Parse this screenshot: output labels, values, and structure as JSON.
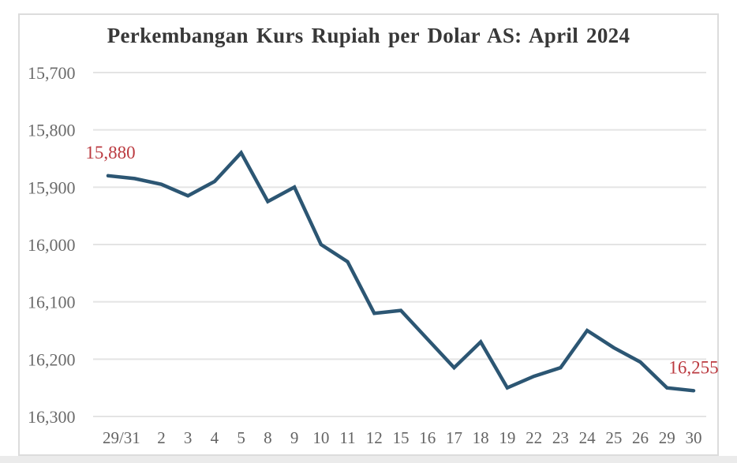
{
  "page": {
    "background": "#ffffff",
    "frame_border_color": "#dcdcdc",
    "bottom_strip_color": "#ebebeb"
  },
  "chart_data": {
    "type": "line",
    "title": "Perkembangan Kurs Rupiah per Dolar AS: April 2024",
    "legend_position": "none",
    "grid": true,
    "gridline_color": "#e4e4e4",
    "axis_label_color": "#6a6a6a",
    "title_color": "#383838",
    "y_axis": {
      "min": 15700,
      "max": 16300,
      "step": 100,
      "inverted_depreciation_down": true,
      "tick_labels": [
        "15,700",
        "15,800",
        "15,900",
        "16,000",
        "16,100",
        "16,200",
        "16,300"
      ]
    },
    "x_ticks": [
      {
        "label": "29/31",
        "at": 0.5
      },
      {
        "label": "2",
        "at": 2
      },
      {
        "label": "3",
        "at": 3
      },
      {
        "label": "4",
        "at": 4
      },
      {
        "label": "5",
        "at": 5
      },
      {
        "label": "8",
        "at": 6
      },
      {
        "label": "9",
        "at": 7
      },
      {
        "label": "10",
        "at": 8
      },
      {
        "label": "11",
        "at": 9
      },
      {
        "label": "12",
        "at": 10
      },
      {
        "label": "15",
        "at": 11
      },
      {
        "label": "16",
        "at": 12
      },
      {
        "label": "17",
        "at": 13
      },
      {
        "label": "18",
        "at": 14
      },
      {
        "label": "19",
        "at": 15
      },
      {
        "label": "22",
        "at": 16
      },
      {
        "label": "23",
        "at": 17
      },
      {
        "label": "24",
        "at": 18
      },
      {
        "label": "25",
        "at": 19
      },
      {
        "label": "26",
        "at": 20
      },
      {
        "label": "29",
        "at": 21
      },
      {
        "label": "30",
        "at": 22
      }
    ],
    "series": [
      {
        "name": "Kurs Rupiah per Dolar AS",
        "color": "#2c5673",
        "dates": [
          "29 Mar",
          "31 Mar",
          "2",
          "3",
          "4",
          "5",
          "8",
          "9",
          "10",
          "11",
          "12",
          "15",
          "16",
          "17",
          "18",
          "19",
          "22",
          "23",
          "24",
          "25",
          "26",
          "29",
          "30"
        ],
        "values": [
          15880,
          15885,
          15895,
          15915,
          15890,
          15840,
          15925,
          15900,
          16000,
          16030,
          16120,
          16115,
          16165,
          16215,
          16170,
          16250,
          16230,
          16215,
          16150,
          16180,
          16205,
          16250,
          16255
        ]
      }
    ],
    "annotations": [
      {
        "text": "15,880",
        "point_index": 0,
        "color": "#bb3a40"
      },
      {
        "text": "16,255",
        "point_index": 22,
        "color": "#bb3a40"
      }
    ]
  }
}
